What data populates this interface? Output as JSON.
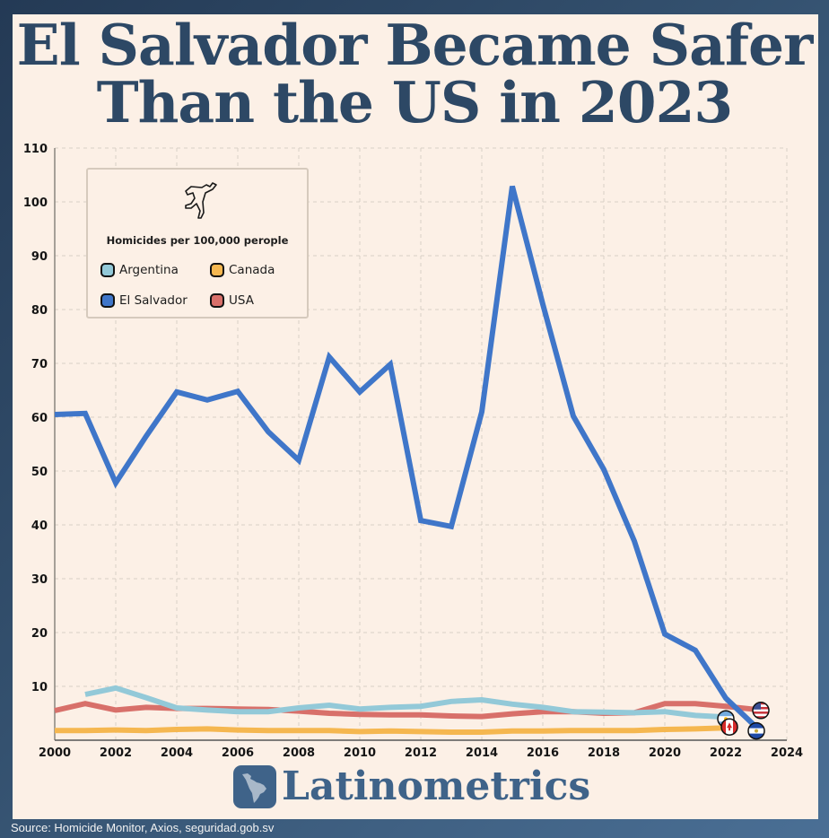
{
  "title_lines": [
    "El Salvador Became Safer",
    "Than the US in 2023"
  ],
  "chart_data": {
    "type": "line",
    "title": "El Salvador Became Safer Than the US in 2023",
    "xlabel": "",
    "ylabel": "Homicides per 100,000 perople",
    "xlim": [
      2000,
      2024
    ],
    "ylim": [
      0,
      110
    ],
    "x_ticks": [
      2000,
      2002,
      2004,
      2006,
      2008,
      2010,
      2012,
      2014,
      2016,
      2018,
      2020,
      2022,
      2024
    ],
    "y_ticks": [
      10,
      20,
      30,
      40,
      50,
      60,
      70,
      80,
      90,
      100,
      110
    ],
    "grid": true,
    "legend_placement": "top-left",
    "series": [
      {
        "name": "El Salvador",
        "color": "#3f76c9",
        "flag": "El Salvador",
        "x": [
          2000,
          2001,
          2002,
          2003,
          2004,
          2005,
          2006,
          2007,
          2008,
          2009,
          2010,
          2011,
          2012,
          2013,
          2014,
          2015,
          2016,
          2017,
          2018,
          2019,
          2020,
          2021,
          2022,
          2023
        ],
        "values": [
          60.5,
          60.7,
          47.8,
          56.5,
          64.7,
          63.2,
          64.8,
          57.3,
          52.0,
          71.2,
          64.7,
          69.8,
          40.8,
          39.7,
          61.0,
          102.9,
          81.0,
          60.2,
          50.3,
          37.0,
          19.7,
          16.7,
          7.8,
          2.4
        ]
      },
      {
        "name": "Argentina",
        "color": "#93c9d8",
        "flag": "Argentina",
        "x": [
          2001,
          2002,
          2003,
          2004,
          2005,
          2006,
          2007,
          2008,
          2009,
          2010,
          2011,
          2012,
          2013,
          2014,
          2015,
          2016,
          2017,
          2018,
          2019,
          2020,
          2021,
          2022
        ],
        "values": [
          8.5,
          9.7,
          7.9,
          6.0,
          5.6,
          5.3,
          5.3,
          6.0,
          6.5,
          5.8,
          6.1,
          6.3,
          7.2,
          7.5,
          6.7,
          6.1,
          5.3,
          5.2,
          5.1,
          5.3,
          4.6,
          4.3
        ]
      },
      {
        "name": "Canada",
        "color": "#f5b750",
        "flag": "Canada",
        "x": [
          2000,
          2001,
          2002,
          2003,
          2004,
          2005,
          2006,
          2007,
          2008,
          2009,
          2010,
          2011,
          2012,
          2013,
          2014,
          2015,
          2016,
          2017,
          2018,
          2019,
          2020,
          2021,
          2022
        ],
        "values": [
          1.8,
          1.8,
          1.9,
          1.8,
          2.0,
          2.1,
          1.9,
          1.8,
          1.8,
          1.8,
          1.6,
          1.7,
          1.6,
          1.5,
          1.5,
          1.7,
          1.7,
          1.8,
          1.8,
          1.8,
          2.0,
          2.1,
          2.3
        ]
      },
      {
        "name": "USA",
        "color": "#d8706a",
        "flag": "USA",
        "x": [
          2000,
          2001,
          2002,
          2003,
          2004,
          2005,
          2006,
          2007,
          2008,
          2009,
          2010,
          2011,
          2012,
          2013,
          2014,
          2015,
          2016,
          2017,
          2018,
          2019,
          2020,
          2021,
          2022,
          2023
        ],
        "values": [
          5.5,
          6.8,
          5.6,
          6.1,
          5.9,
          5.9,
          5.8,
          5.7,
          5.4,
          5.0,
          4.8,
          4.7,
          4.7,
          4.5,
          4.4,
          4.9,
          5.3,
          5.3,
          5.0,
          5.1,
          6.8,
          6.8,
          6.3,
          5.7
        ]
      }
    ]
  },
  "legend": {
    "icon": "chalk-outline-body-icon",
    "title": "Homicides per 100,000 perople",
    "items": [
      {
        "label": "Argentina",
        "color": "#93c9d8"
      },
      {
        "label": "Canada",
        "color": "#f5b750"
      },
      {
        "label": "El Salvador",
        "color": "#3f76c9"
      },
      {
        "label": "USA",
        "color": "#d8706a"
      }
    ]
  },
  "brand": {
    "name": "Latinometrics",
    "icon": "latin-america-map-icon"
  },
  "source": "Source:  Homicide Monitor, Axios, seguridad.gob.sv",
  "colors": {
    "frame": "#34516f",
    "panel": "#fcf0e6",
    "title": "#2d4865",
    "brand": "#3f6389"
  }
}
